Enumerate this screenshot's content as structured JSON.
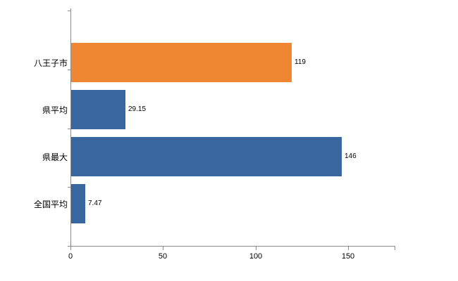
{
  "chart_data": {
    "type": "bar",
    "orientation": "horizontal",
    "title": "",
    "xlabel": "",
    "ylabel": "",
    "categories": [
      "八王子市",
      "県平均",
      "県最大",
      "全国平均"
    ],
    "values": [
      119,
      29.15,
      146,
      7.47
    ],
    "value_labels": [
      "119",
      "29.15",
      "146",
      "7.47"
    ],
    "bar_colors": [
      "#ee8632",
      "#38679f",
      "#38679f",
      "#38679f"
    ],
    "xlim": [
      0,
      175
    ],
    "x_ticks": [
      0,
      50,
      100,
      150
    ],
    "x_tick_labels": [
      "0",
      "50",
      "100",
      "150"
    ],
    "grid": false,
    "legend": null,
    "axis_color": "#8a8a8a",
    "label_color": "#000000"
  }
}
